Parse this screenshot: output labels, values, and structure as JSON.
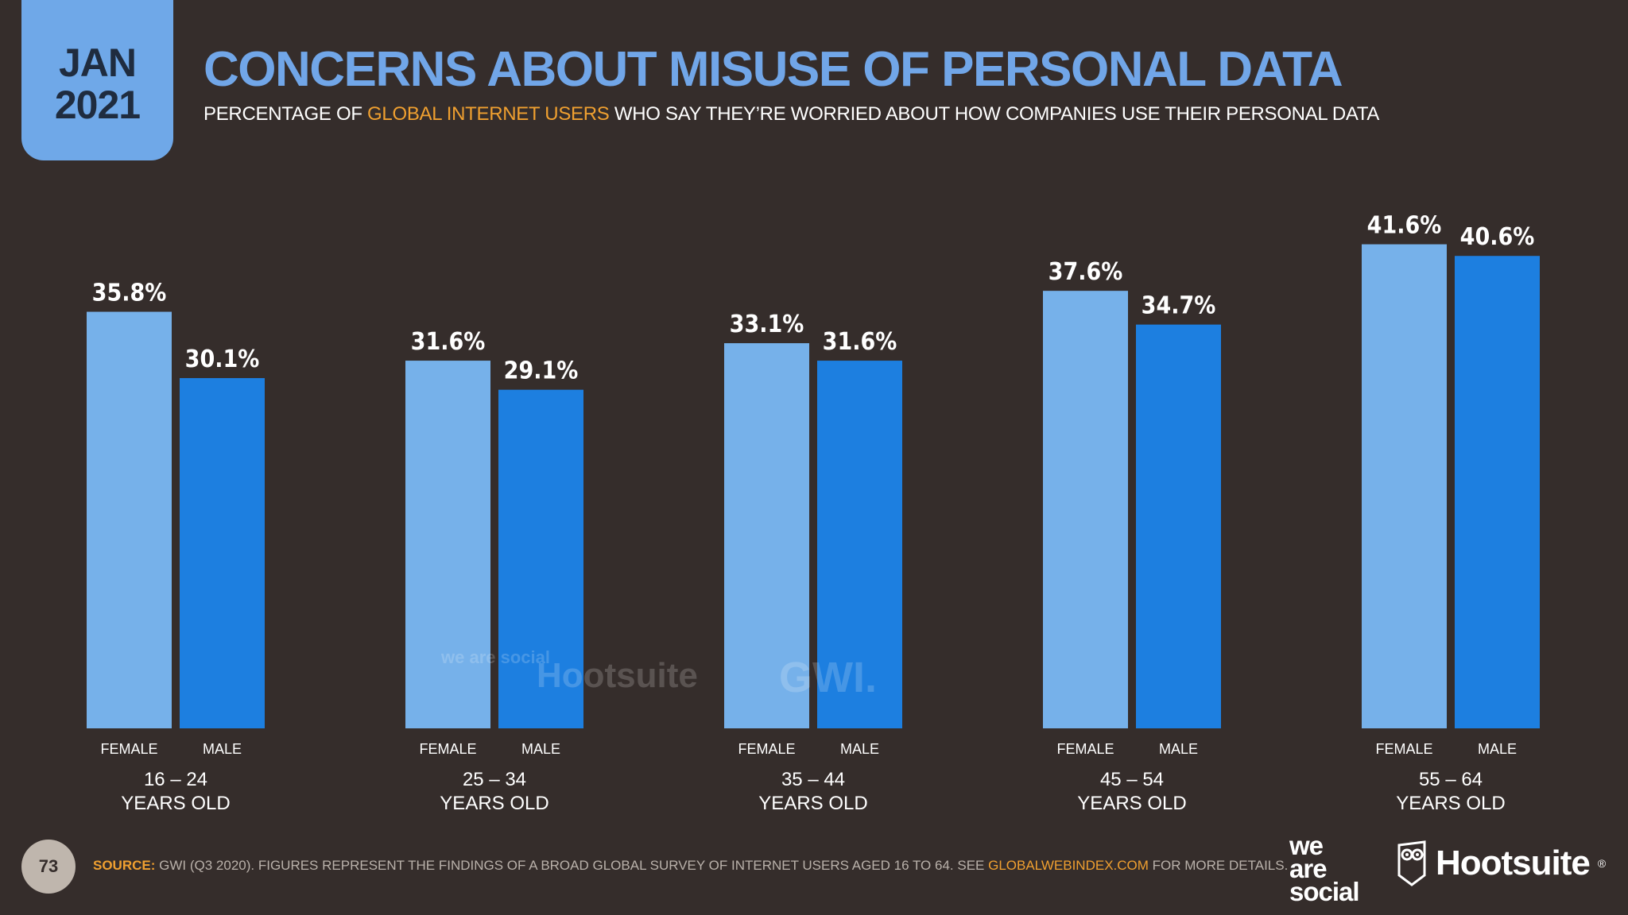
{
  "badge": {
    "month": "JAN",
    "year": "2021"
  },
  "header": {
    "title": "CONCERNS ABOUT MISUSE OF PERSONAL DATA",
    "subtitle_before": "PERCENTAGE OF ",
    "subtitle_highlight": "GLOBAL INTERNET USERS",
    "subtitle_after": " WHO SAY THEY’RE WORRIED ABOUT HOW COMPANIES USE THEIR PERSONAL DATA"
  },
  "chart_data": {
    "type": "bar",
    "categories": [
      "16 – 24",
      "25 – 34",
      "35 – 44",
      "45 – 54",
      "55 – 64"
    ],
    "category_sublabel": "YEARS OLD",
    "series": [
      {
        "name": "FEMALE",
        "values": [
          35.8,
          31.6,
          33.1,
          37.6,
          41.6
        ],
        "labels": [
          "35.8%",
          "31.6%",
          "33.1%",
          "37.6%",
          "41.6%"
        ],
        "color": "#76b1ea"
      },
      {
        "name": "MALE",
        "values": [
          30.1,
          29.1,
          31.6,
          34.7,
          40.6
        ],
        "labels": [
          "30.1%",
          "29.1%",
          "31.6%",
          "34.7%",
          "40.6%"
        ],
        "color": "#1d7fe0"
      }
    ],
    "ylim": [
      0,
      50
    ],
    "grid": false,
    "title": "CONCERNS ABOUT MISUSE OF PERSONAL DATA",
    "xlabel": "",
    "ylabel": ""
  },
  "watermark": {
    "was": "we are social",
    "hootsuite": "Hootsuite",
    "gwi": "GWI."
  },
  "footer": {
    "page_number": "73",
    "source_label": "SOURCE:",
    "source_text": " GWI (Q3 2020). FIGURES REPRESENT THE FINDINGS OF A BROAD GLOBAL SURVEY OF INTERNET USERS AGED 16 TO 64. SEE ",
    "source_link": "GLOBALWEBINDEX.COM",
    "source_end": " FOR MORE DETAILS.",
    "logo_was": [
      "we",
      "are",
      "social"
    ],
    "logo_hootsuite": "Hootsuite",
    "logo_reg": "®"
  },
  "colors": {
    "background": "#352d2b",
    "accent": "#71a6e8",
    "highlight": "#f0a030"
  }
}
